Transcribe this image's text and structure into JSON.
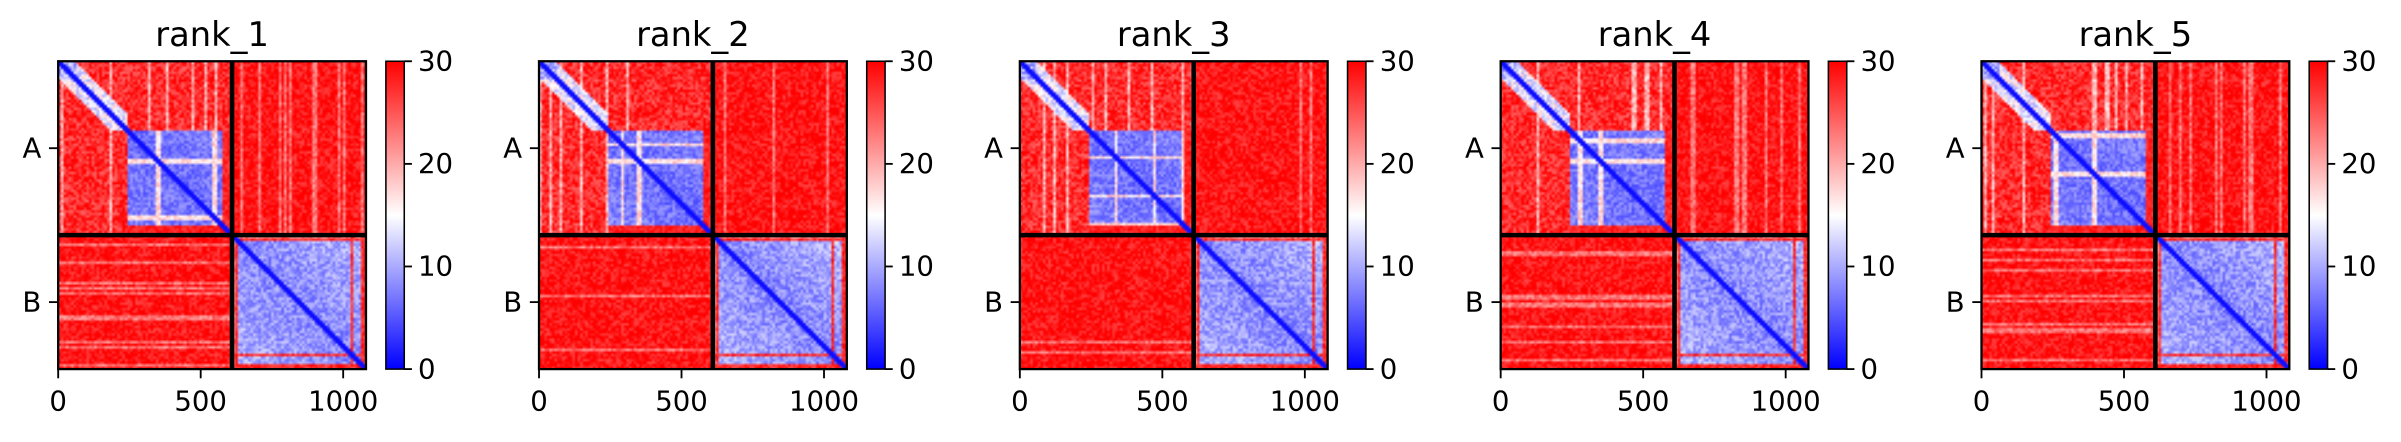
{
  "chart_data": {
    "type": "heatmap",
    "panels": [
      {
        "title": "rank_1",
        "variant": 1
      },
      {
        "title": "rank_2",
        "variant": 2
      },
      {
        "title": "rank_3",
        "variant": 3
      },
      {
        "title": "rank_4",
        "variant": 4
      },
      {
        "title": "rank_5",
        "variant": 5
      }
    ],
    "x_range": [
      0,
      1080
    ],
    "x_ticks": [
      0,
      500,
      1000
    ],
    "chain_boundary": 610,
    "y_ticks": [
      {
        "label": "A",
        "center": 305
      },
      {
        "label": "B",
        "center": 845
      }
    ],
    "colorbar": {
      "min": 0,
      "max": 30,
      "ticks": [
        0,
        10,
        20,
        30
      ],
      "colormap": "bwr",
      "colors": {
        "low": "#0000ff",
        "mid": "#ffffff",
        "high": "#ff0000"
      }
    }
  }
}
